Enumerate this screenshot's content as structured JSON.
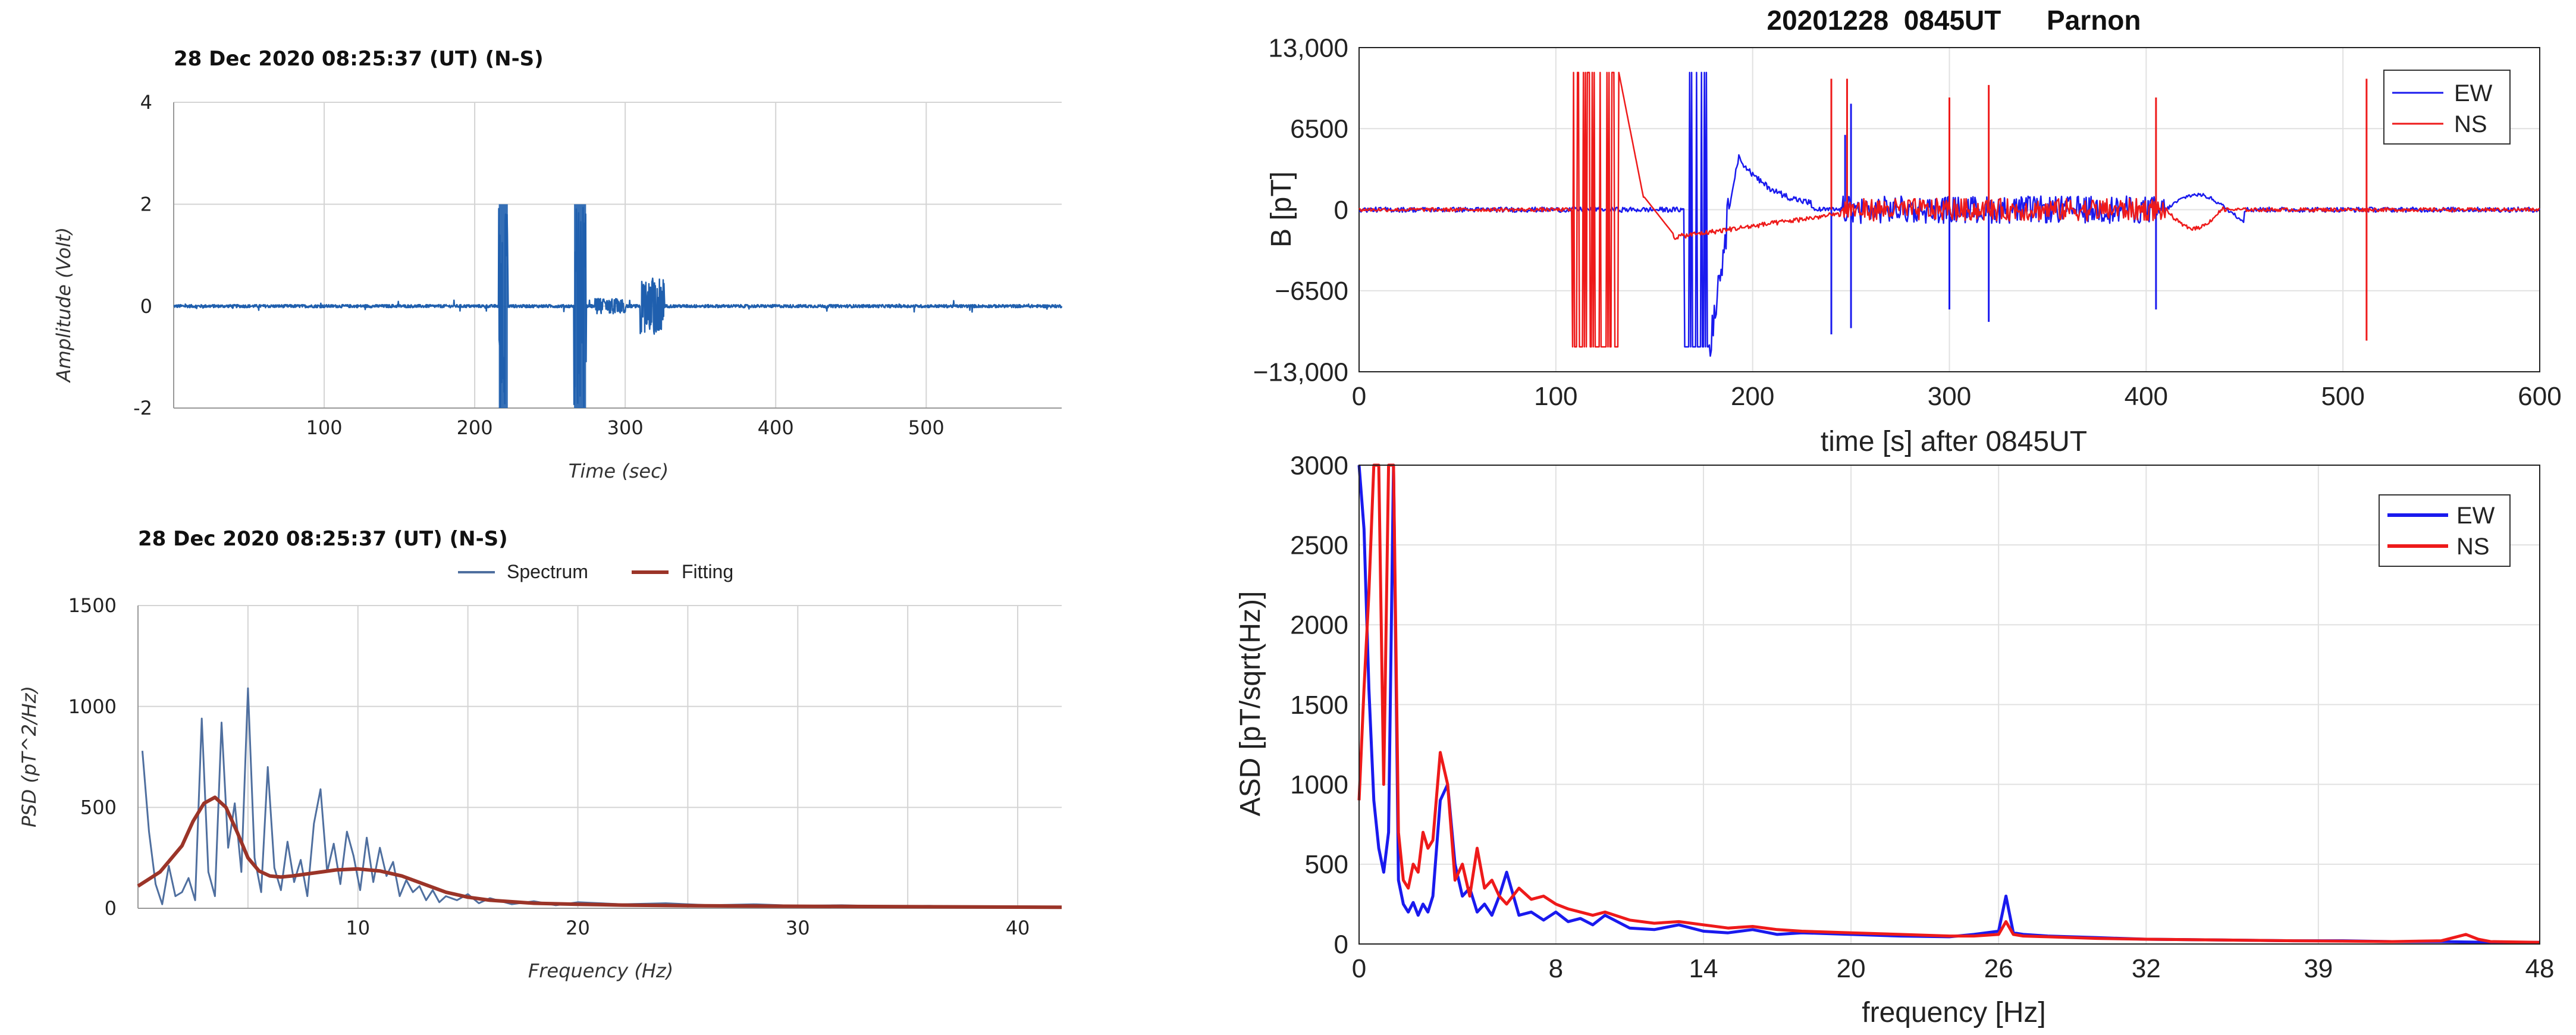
{
  "colors": {
    "signal_blue": "#1f5fae",
    "spectrum_blue": "#4f6f9f",
    "fitting_red": "#9b3428",
    "ew_blue": "#1a1aee",
    "ns_red": "#ee1a1a",
    "grid_light": "#d4d4d4",
    "grid_matlab": "#e1e1e1"
  },
  "chart_data": [
    {
      "id": "time_ns",
      "type": "line",
      "title": "28 Dec 2020  08:25:37 (UT) (N-S)",
      "xlabel": "Time (sec)",
      "ylabel": "Amplitude (Volt)",
      "xlim": [
        0,
        590
      ],
      "ylim": [
        -2,
        4
      ],
      "xticks": [
        100,
        200,
        300,
        400,
        500
      ],
      "yticks": [
        -2,
        0,
        2,
        4
      ],
      "grid": true,
      "series": [
        {
          "color_key": "signal_blue",
          "noise": 0.03,
          "bursts": [
            {
              "t0": 216,
              "t1": 222,
              "amp": 2.0
            },
            {
              "t0": 266,
              "t1": 274,
              "amp": 2.0
            },
            {
              "t0": 310,
              "t1": 326,
              "amp": 0.55
            },
            {
              "t0": 280,
              "t1": 300,
              "amp": 0.15
            }
          ]
        }
      ]
    },
    {
      "id": "psd_ns",
      "type": "line",
      "title": "28 Dec 2020  08:25:37 (UT) (N-S)",
      "xlabel": "Frequency (Hz)",
      "ylabel": "PSD (pT^2/Hz)",
      "xlim": [
        0,
        42
      ],
      "ylim": [
        0,
        1500
      ],
      "xticks": [
        10,
        20,
        30,
        40
      ],
      "yticks": [
        0,
        500,
        1000,
        1500
      ],
      "grid": true,
      "legend": "top-center",
      "series": [
        {
          "name": "Spectrum",
          "color_key": "spectrum_blue",
          "x": [
            0.2,
            0.5,
            0.8,
            1.1,
            1.4,
            1.7,
            2.0,
            2.3,
            2.6,
            2.9,
            3.2,
            3.5,
            3.8,
            4.1,
            4.4,
            4.7,
            5.0,
            5.3,
            5.6,
            5.9,
            6.2,
            6.5,
            6.8,
            7.1,
            7.4,
            7.7,
            8.0,
            8.3,
            8.6,
            8.9,
            9.2,
            9.5,
            9.8,
            10.1,
            10.4,
            10.7,
            11.0,
            11.3,
            11.6,
            11.9,
            12.2,
            12.5,
            12.8,
            13.1,
            13.4,
            13.7,
            14.0,
            14.5,
            15.0,
            15.5,
            16.0,
            17,
            18,
            19,
            20,
            22,
            24,
            26,
            28,
            30,
            32,
            34,
            36,
            38,
            40,
            42
          ],
          "y": [
            780,
            380,
            120,
            20,
            210,
            60,
            80,
            150,
            40,
            940,
            180,
            60,
            920,
            300,
            520,
            180,
            1090,
            250,
            80,
            700,
            200,
            90,
            330,
            130,
            240,
            60,
            420,
            590,
            180,
            320,
            120,
            380,
            260,
            90,
            350,
            130,
            300,
            160,
            230,
            60,
            140,
            80,
            110,
            40,
            90,
            30,
            60,
            40,
            70,
            25,
            50,
            20,
            35,
            15,
            30,
            20,
            25,
            15,
            20,
            12,
            15,
            10,
            12,
            8,
            10,
            8
          ]
        },
        {
          "name": "Fitting",
          "color_key": "fitting_red",
          "x": [
            0,
            1,
            2,
            2.5,
            3,
            3.5,
            4,
            4.5,
            5,
            5.5,
            6,
            6.5,
            7,
            8,
            9,
            10,
            11,
            12,
            13,
            14,
            15,
            16,
            18,
            20,
            22,
            25,
            30,
            35,
            40,
            42
          ],
          "y": [
            110,
            180,
            310,
            430,
            520,
            550,
            500,
            380,
            250,
            185,
            160,
            155,
            160,
            175,
            190,
            195,
            185,
            160,
            120,
            80,
            55,
            40,
            25,
            20,
            16,
            13,
            10,
            8,
            6,
            5
          ]
        }
      ]
    },
    {
      "id": "parnon_time",
      "type": "line",
      "title": "20201228  0845UT      Parnon",
      "xlabel": "time [s] after 0845UT",
      "ylabel": "B [pT]",
      "xlim": [
        0,
        600
      ],
      "ylim": [
        -13000,
        13000
      ],
      "xticks": [
        0,
        100,
        200,
        300,
        400,
        500,
        600
      ],
      "yticks": [
        13000,
        6500,
        0,
        -6500,
        -13000
      ],
      "ytick_labels": [
        "13,000",
        "6500",
        "0",
        "−6500",
        "−13,000"
      ],
      "grid": true,
      "legend": "top-right",
      "series": [
        {
          "name": "EW",
          "color_key": "ew_blue"
        },
        {
          "name": "NS",
          "color_key": "ns_red"
        }
      ]
    },
    {
      "id": "parnon_asd",
      "type": "line",
      "xlabel": "frequency [Hz]",
      "ylabel": "ASD [pT/sqrt(Hz)]",
      "xlim": [
        0,
        48
      ],
      "ylim": [
        0,
        3000
      ],
      "xticks": [
        0,
        8,
        14,
        20,
        26,
        32,
        39,
        48
      ],
      "yticks": [
        0,
        500,
        1000,
        1500,
        2000,
        2500,
        3000
      ],
      "grid": true,
      "legend": "top-right",
      "series": [
        {
          "name": "EW",
          "color_key": "ew_blue",
          "x": [
            0,
            0.2,
            0.4,
            0.6,
            0.8,
            1.0,
            1.2,
            1.4,
            1.6,
            1.8,
            2.0,
            2.2,
            2.4,
            2.6,
            2.8,
            3.0,
            3.3,
            3.6,
            3.9,
            4.2,
            4.5,
            4.8,
            5.1,
            5.4,
            5.7,
            6,
            6.5,
            7,
            7.5,
            8,
            8.5,
            9,
            9.5,
            10,
            11,
            12,
            13,
            14,
            15,
            16,
            17,
            18,
            20,
            22,
            24,
            25,
            26,
            26.3,
            26.6,
            27,
            28,
            30,
            32,
            35,
            38,
            40,
            42,
            44,
            46,
            48
          ],
          "y": [
            3000,
            2600,
            1600,
            900,
            600,
            450,
            700,
            3000,
            400,
            250,
            200,
            260,
            180,
            250,
            200,
            300,
            900,
            1000,
            500,
            300,
            350,
            200,
            250,
            180,
            300,
            450,
            180,
            200,
            150,
            200,
            140,
            160,
            120,
            180,
            100,
            90,
            120,
            80,
            70,
            90,
            60,
            70,
            60,
            50,
            45,
            60,
            80,
            300,
            70,
            60,
            50,
            40,
            30,
            25,
            20,
            20,
            15,
            15,
            10,
            10
          ]
        },
        {
          "name": "NS",
          "color_key": "ns_red",
          "x": [
            0,
            0.2,
            0.4,
            0.6,
            0.8,
            1.0,
            1.2,
            1.4,
            1.6,
            1.8,
            2.0,
            2.2,
            2.4,
            2.6,
            2.8,
            3.0,
            3.3,
            3.6,
            3.9,
            4.2,
            4.5,
            4.8,
            5.1,
            5.4,
            5.7,
            6,
            6.5,
            7,
            7.5,
            8,
            8.5,
            9,
            9.5,
            10,
            11,
            12,
            13,
            14,
            15,
            16,
            17,
            18,
            20,
            22,
            24,
            25,
            26,
            26.3,
            26.6,
            27,
            28,
            30,
            32,
            35,
            38,
            40,
            42,
            44,
            45,
            45.5,
            46,
            48
          ],
          "y": [
            900,
            1600,
            2200,
            3000,
            3000,
            1000,
            3000,
            3000,
            700,
            400,
            350,
            500,
            450,
            700,
            600,
            650,
            1200,
            1000,
            400,
            500,
            300,
            600,
            350,
            400,
            300,
            250,
            350,
            280,
            300,
            250,
            220,
            200,
            180,
            200,
            150,
            130,
            140,
            120,
            100,
            110,
            90,
            80,
            70,
            60,
            50,
            50,
            60,
            140,
            60,
            50,
            45,
            35,
            30,
            25,
            20,
            18,
            15,
            20,
            60,
            30,
            15,
            10
          ]
        }
      ]
    }
  ]
}
